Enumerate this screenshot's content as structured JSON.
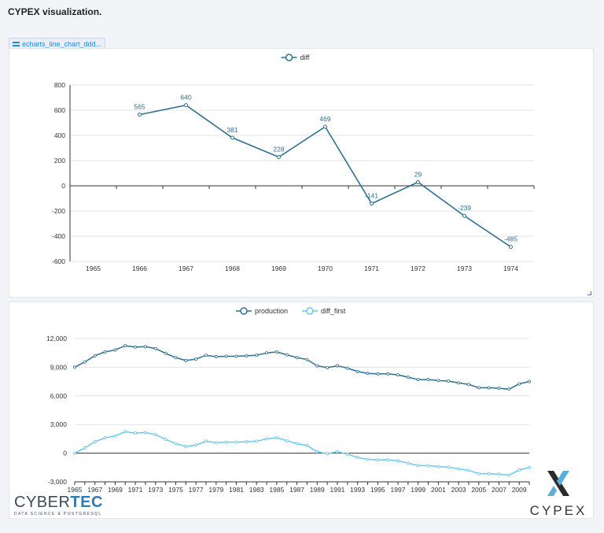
{
  "app": {
    "title": "CYPEX visualization."
  },
  "tab": {
    "label": "echarts_line_chart_ddd..."
  },
  "chart_data": [
    {
      "type": "line",
      "x": [
        "1965",
        "1966",
        "1967",
        "1968",
        "1969",
        "1970",
        "1971",
        "1972",
        "1973",
        "1974"
      ],
      "series": [
        {
          "name": "diff",
          "color": "#2f6f8f",
          "values": [
            null,
            565,
            640,
            381,
            228,
            469,
            -141,
            29,
            -239,
            -485
          ],
          "labels": [
            "",
            "565",
            "640",
            "381",
            "228",
            "469",
            "-141",
            "29",
            "-239",
            "-485"
          ]
        }
      ],
      "ylim": [
        -600,
        800
      ],
      "yticks": [
        800,
        600,
        400,
        200,
        0,
        -200,
        -400,
        -600
      ],
      "ytick_labels": [
        "800",
        "600",
        "400",
        "200",
        "0",
        "-200",
        "-400",
        "-600"
      ],
      "grid": true,
      "legend": "top-center"
    },
    {
      "type": "line",
      "x": [
        1965,
        1966,
        1967,
        1968,
        1969,
        1970,
        1971,
        1972,
        1973,
        1974,
        1975,
        1976,
        1977,
        1978,
        1979,
        1980,
        1981,
        1982,
        1983,
        1984,
        1985,
        1986,
        1987,
        1988,
        1989,
        1990,
        1991,
        1992,
        1993,
        1994,
        1995,
        1996,
        1997,
        1998,
        1999,
        2000,
        2001,
        2002,
        2003,
        2004,
        2005,
        2006,
        2007,
        2008,
        2009,
        2010
      ],
      "xtick_labels": [
        "1965",
        "1967",
        "1969",
        "1971",
        "1973",
        "1975",
        "1977",
        "1979",
        "1981",
        "1983",
        "1985",
        "1987",
        "1989",
        "1991",
        "1993",
        "1995",
        "1997",
        "1999",
        "2001",
        "2003",
        "2005",
        "2007",
        "2009"
      ],
      "series": [
        {
          "name": "production",
          "color": "#2f6f8f",
          "values": [
            9000,
            9550,
            10200,
            10600,
            10800,
            11250,
            11100,
            11150,
            10950,
            10450,
            10000,
            9700,
            9850,
            10250,
            10100,
            10150,
            10150,
            10200,
            10250,
            10500,
            10600,
            10300,
            10000,
            9800,
            9150,
            8950,
            9150,
            8900,
            8550,
            8350,
            8300,
            8300,
            8200,
            7950,
            7700,
            7700,
            7600,
            7550,
            7350,
            7200,
            6850,
            6850,
            6800,
            6700,
            7250,
            7500
          ]
        },
        {
          "name": "diff_first",
          "color": "#6cc6ea",
          "values": [
            0,
            550,
            1200,
            1600,
            1800,
            2250,
            2100,
            2150,
            1950,
            1450,
            1000,
            700,
            850,
            1250,
            1100,
            1150,
            1150,
            1200,
            1250,
            1500,
            1600,
            1300,
            1000,
            800,
            150,
            -50,
            150,
            -100,
            -450,
            -650,
            -700,
            -700,
            -800,
            -1050,
            -1300,
            -1300,
            -1400,
            -1450,
            -1650,
            -1800,
            -2150,
            -2150,
            -2200,
            -2300,
            -1750,
            -1500
          ]
        }
      ],
      "ylim": [
        -3000,
        12000
      ],
      "yticks": [
        12000,
        9000,
        6000,
        3000,
        0,
        -3000
      ],
      "ytick_labels": [
        "12,000",
        "9,000",
        "6,000",
        "3,000",
        "0",
        "-3,000"
      ],
      "grid": true,
      "legend": "top-center"
    }
  ],
  "logos": {
    "cybertec_prefix": "CYBER",
    "cybertec_suffix": "TEC",
    "cybertec_tagline": "DATA SCIENCE & POSTGRESQL",
    "cypex_word": "CYPEX"
  }
}
